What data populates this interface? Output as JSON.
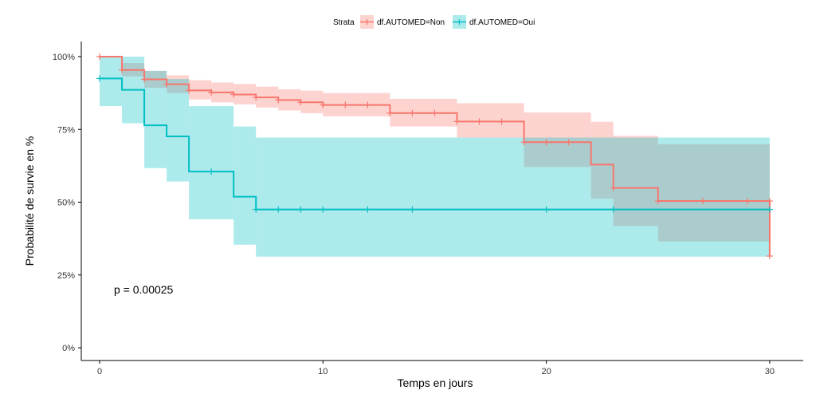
{
  "chart_data": {
    "type": "line",
    "subtype": "kaplan-meier step curves with confidence bands",
    "xlabel": "Temps en jours",
    "ylabel": "Probabilité de survie en %",
    "xlim": [
      -1.2,
      30.5
    ],
    "ylim": [
      0,
      100
    ],
    "x_ticks": [
      "0",
      "10",
      "20",
      "30"
    ],
    "x_tick_values": [
      0,
      10,
      20,
      30
    ],
    "y_ticks": [
      "0%",
      "25%",
      "50%",
      "75%",
      "100%"
    ],
    "y_tick_values": [
      0,
      25,
      50,
      75,
      100
    ],
    "grid": false,
    "legend": {
      "title": "Strata",
      "placement": "top"
    },
    "annotation": "p = 0.00025",
    "series": [
      {
        "name": "df.AUTOMED=Non",
        "color": "#F8766D",
        "steps": [
          {
            "t": 0,
            "s": 100,
            "lo": 100,
            "hi": 100
          },
          {
            "t": 1,
            "s": 95.4,
            "lo": 93.2,
            "hi": 97.8
          },
          {
            "t": 2,
            "s": 92.2,
            "lo": 89.3,
            "hi": 95.1
          },
          {
            "t": 3,
            "s": 90.5,
            "lo": 87.5,
            "hi": 93.6
          },
          {
            "t": 4,
            "s": 88.4,
            "lo": 85.3,
            "hi": 91.9
          },
          {
            "t": 5,
            "s": 87.7,
            "lo": 84.3,
            "hi": 91.1
          },
          {
            "t": 6,
            "s": 87.0,
            "lo": 83.6,
            "hi": 90.6
          },
          {
            "t": 7,
            "s": 86.0,
            "lo": 82.5,
            "hi": 89.7
          },
          {
            "t": 8,
            "s": 85.1,
            "lo": 81.5,
            "hi": 88.8
          },
          {
            "t": 9,
            "s": 84.3,
            "lo": 80.6,
            "hi": 88.3
          },
          {
            "t": 10,
            "s": 83.4,
            "lo": 79.5,
            "hi": 87.5
          },
          {
            "t": 13,
            "s": 80.6,
            "lo": 76.0,
            "hi": 85.5
          },
          {
            "t": 16,
            "s": 77.7,
            "lo": 72.2,
            "hi": 84.0
          },
          {
            "t": 19,
            "s": 70.6,
            "lo": 62.1,
            "hi": 80.8
          },
          {
            "t": 22,
            "s": 62.9,
            "lo": 51.2,
            "hi": 77.6
          },
          {
            "t": 23,
            "s": 54.9,
            "lo": 41.8,
            "hi": 72.8
          },
          {
            "t": 25,
            "s": 50.4,
            "lo": 36.5,
            "hi": 69.9
          },
          {
            "t": 30,
            "s": 31.5,
            "lo": 36.5,
            "hi": 69.9
          }
        ],
        "censor_times": [
          0,
          1,
          2,
          3,
          4,
          5,
          6,
          7,
          8,
          9,
          10,
          11,
          12,
          13,
          14,
          15,
          16,
          17,
          18,
          19,
          20,
          21,
          23,
          25,
          27,
          29,
          30
        ]
      },
      {
        "name": "df.AUTOMED=Oui",
        "color": "#00BFC4",
        "steps": [
          {
            "t": 0,
            "s": 92.5,
            "lo": 83.0,
            "hi": 100
          },
          {
            "t": 1,
            "s": 88.6,
            "lo": 77.1,
            "hi": 100
          },
          {
            "t": 2,
            "s": 76.4,
            "lo": 61.7,
            "hi": 95.1
          },
          {
            "t": 3,
            "s": 72.6,
            "lo": 57.1,
            "hi": 92.3
          },
          {
            "t": 4,
            "s": 60.5,
            "lo": 44.1,
            "hi": 83.0
          },
          {
            "t": 6,
            "s": 51.9,
            "lo": 35.4,
            "hi": 76.0
          },
          {
            "t": 7,
            "s": 47.5,
            "lo": 31.3,
            "hi": 72.2
          },
          {
            "t": 30,
            "s": 47.5,
            "lo": 31.3,
            "hi": 72.2
          }
        ],
        "censor_times": [
          0,
          5,
          7,
          8,
          9,
          10,
          12,
          14,
          20,
          23,
          30
        ]
      }
    ]
  }
}
